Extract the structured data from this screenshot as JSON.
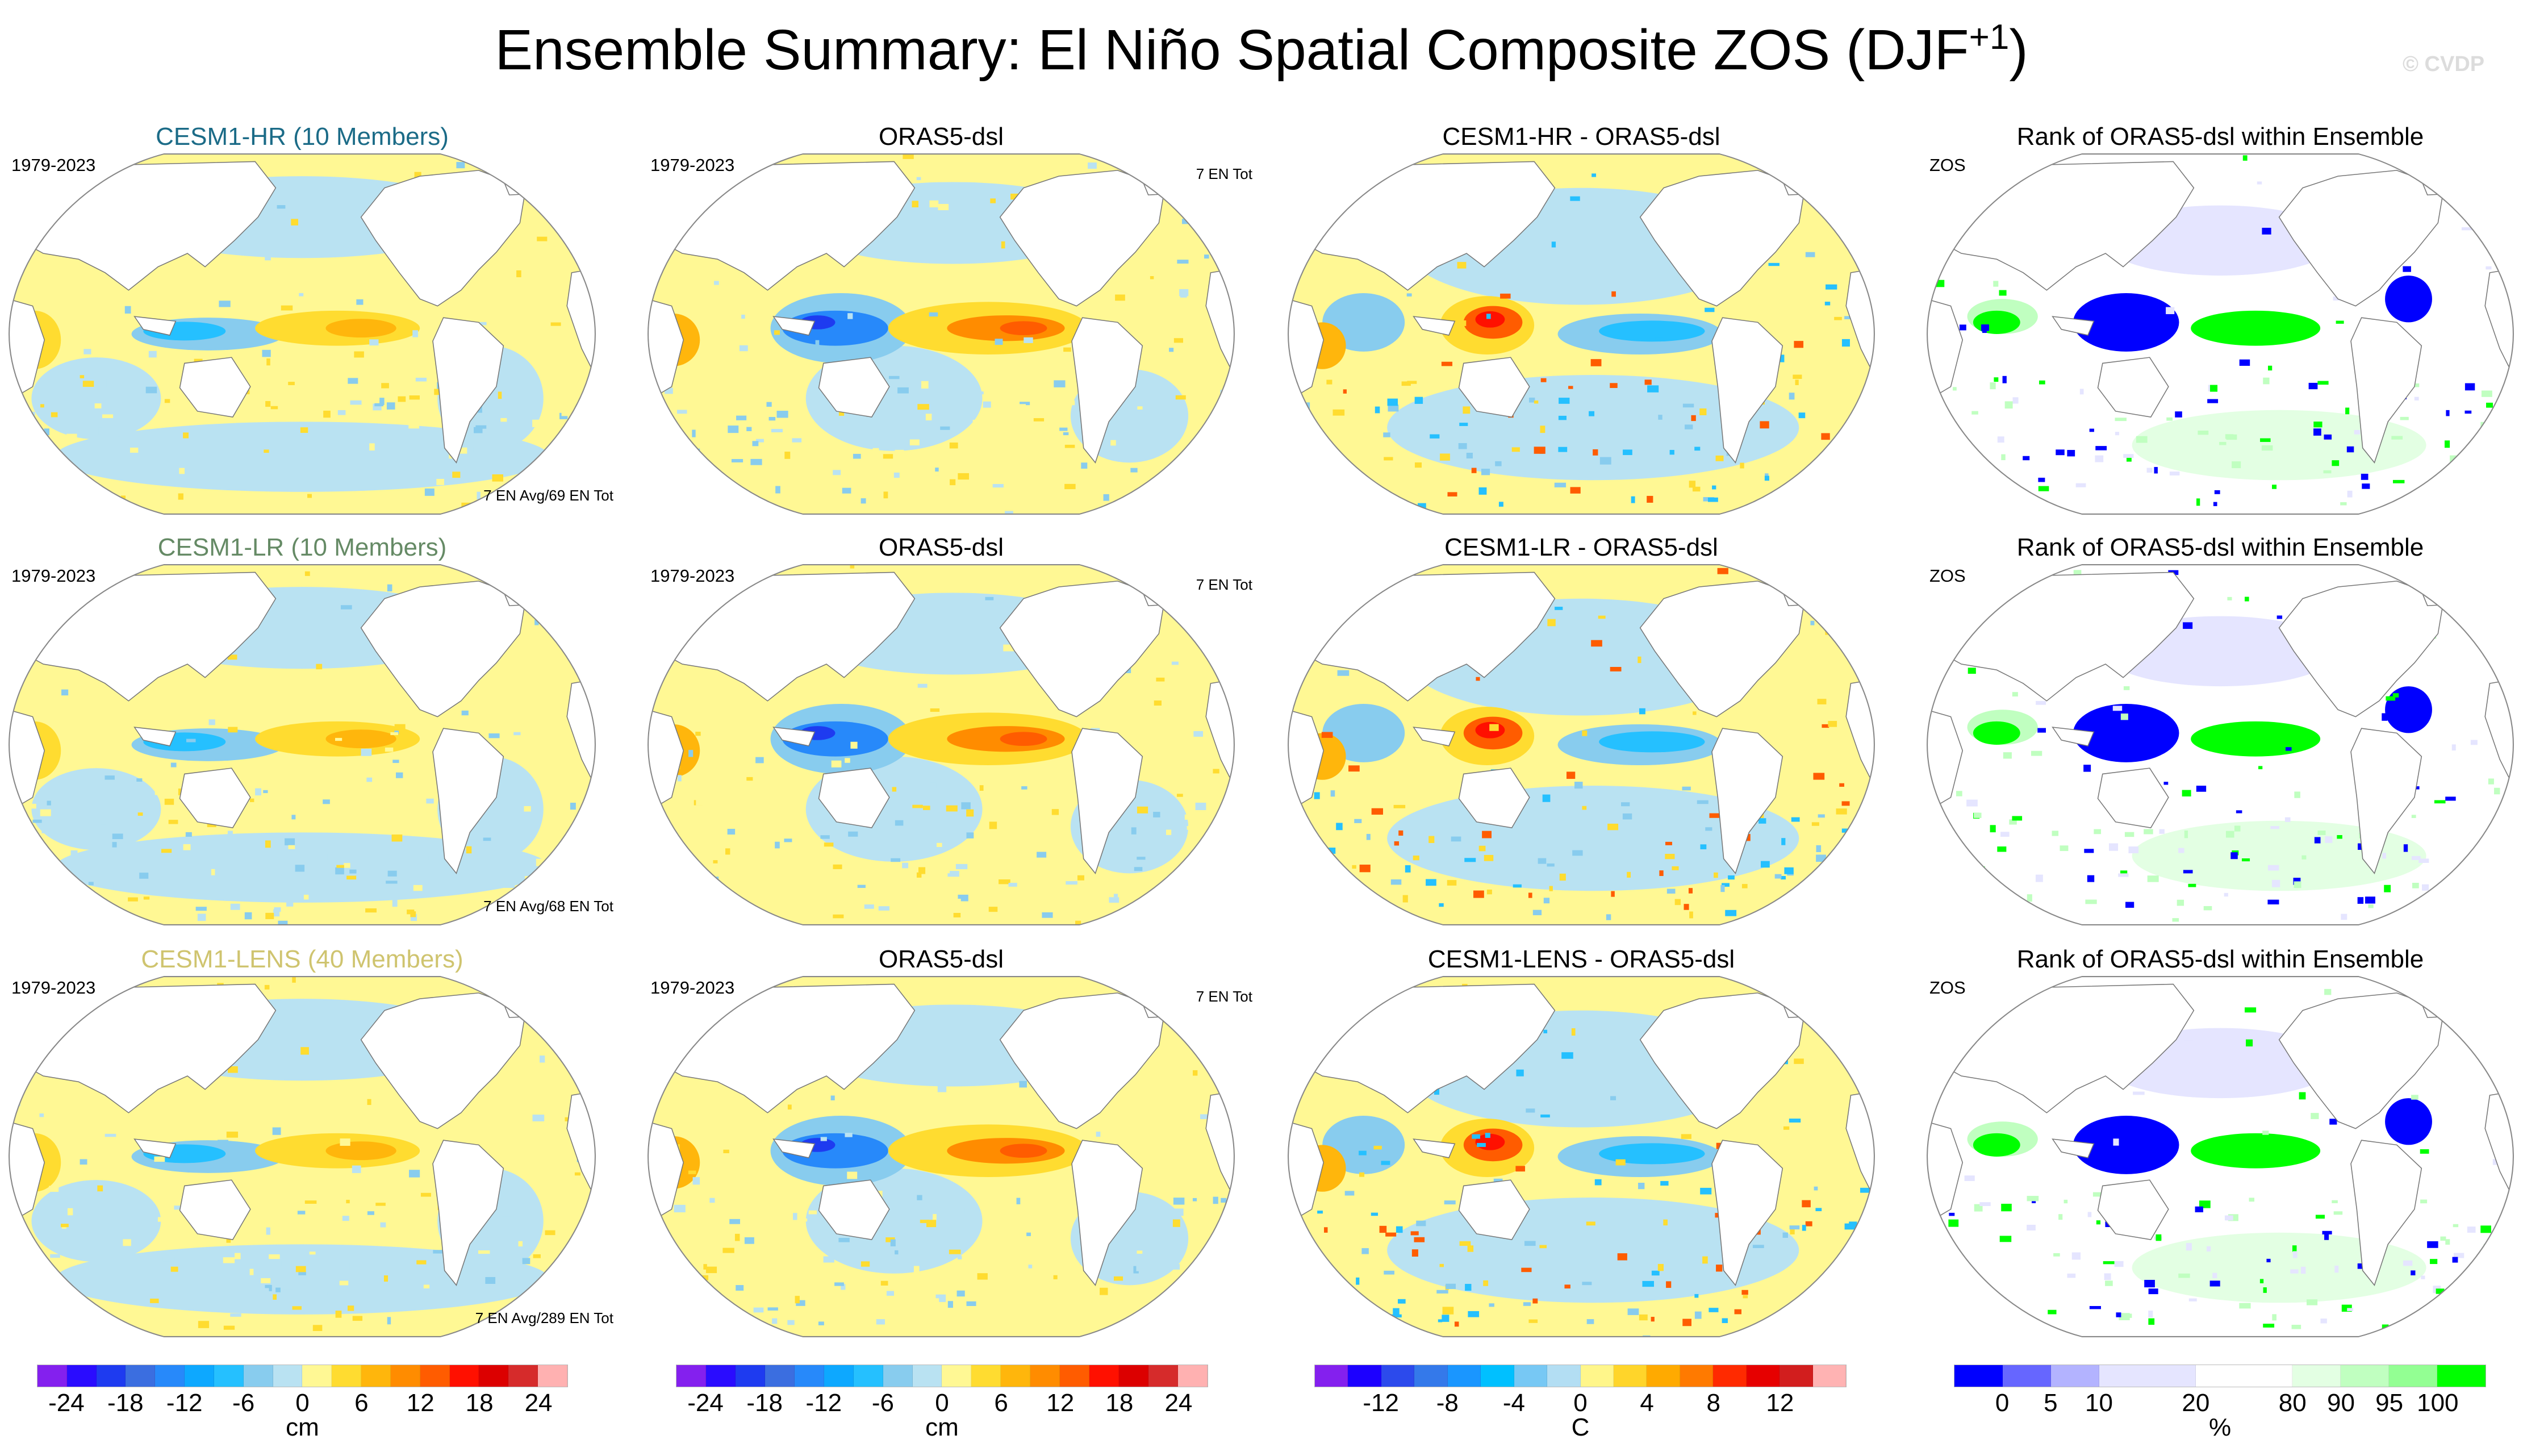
{
  "title": {
    "main": "Ensemble Summary: El Niño Spatial Composite ZOS (DJF",
    "superscript": "+1",
    "close": ")"
  },
  "copyright": "© CVDP",
  "rows": [
    {
      "panels": [
        {
          "title": "CESM1-HR (10 Members)",
          "title_color": "#1b6b87",
          "left_label": "1979-2023",
          "right_label": "7 EN Avg/69 EN Tot",
          "kind": "ensemble-mean"
        },
        {
          "title": "ORAS5-dsl",
          "title_color": "#000000",
          "left_label": "1979-2023",
          "right_label": "7 EN Tot",
          "kind": "observation"
        },
        {
          "title": "CESM1-HR - ORAS5-dsl",
          "title_color": "#000000",
          "left_label": "",
          "right_label": "",
          "kind": "difference"
        },
        {
          "title": "Rank of ORAS5-dsl within Ensemble",
          "title_color": "#000000",
          "left_label": "ZOS",
          "right_label": "",
          "kind": "rank"
        }
      ]
    },
    {
      "panels": [
        {
          "title": "CESM1-LR (10 Members)",
          "title_color": "#658a65",
          "left_label": "1979-2023",
          "right_label": "7 EN Avg/68 EN Tot",
          "kind": "ensemble-mean"
        },
        {
          "title": "ORAS5-dsl",
          "title_color": "#000000",
          "left_label": "1979-2023",
          "right_label": "7 EN Tot",
          "kind": "observation"
        },
        {
          "title": "CESM1-LR - ORAS5-dsl",
          "title_color": "#000000",
          "left_label": "",
          "right_label": "",
          "kind": "difference"
        },
        {
          "title": "Rank of ORAS5-dsl within Ensemble",
          "title_color": "#000000",
          "left_label": "ZOS",
          "right_label": "",
          "kind": "rank"
        }
      ]
    },
    {
      "panels": [
        {
          "title": "CESM1-LENS (40 Members)",
          "title_color": "#cfc46f",
          "left_label": "1979-2023",
          "right_label": "7 EN Avg/289 EN Tot",
          "kind": "ensemble-mean"
        },
        {
          "title": "ORAS5-dsl",
          "title_color": "#000000",
          "left_label": "1979-2023",
          "right_label": "7 EN Tot",
          "kind": "observation"
        },
        {
          "title": "CESM1-LENS - ORAS5-dsl",
          "title_color": "#000000",
          "left_label": "",
          "right_label": "",
          "kind": "difference"
        },
        {
          "title": "Rank of ORAS5-dsl within Ensemble",
          "title_color": "#000000",
          "left_label": "ZOS",
          "right_label": "",
          "kind": "rank"
        }
      ]
    }
  ],
  "colorbars": [
    {
      "units": "cm",
      "levels": [
        -24,
        -21,
        -18,
        -15,
        -12,
        -9,
        -6,
        -3,
        0,
        3,
        6,
        9,
        12,
        15,
        18,
        21,
        24
      ],
      "tick_labels": [
        "-24",
        "-18",
        "-12",
        "-6",
        "0",
        "6",
        "12",
        "18",
        "24"
      ],
      "colors": [
        "#8420ee",
        "#2a0cff",
        "#1e3bf0",
        "#3b6ee0",
        "#2789fa",
        "#0da8ff",
        "#25c0ff",
        "#88ccee",
        "#b9e2f2",
        "#fff894",
        "#ffdc30",
        "#ffb60c",
        "#ff8c00",
        "#ff5c00",
        "#ff1000",
        "#dc0000",
        "#d62b2b",
        "#ffb1b1"
      ]
    },
    {
      "units": "cm",
      "levels": [
        -24,
        -21,
        -18,
        -15,
        -12,
        -9,
        -6,
        -3,
        0,
        3,
        6,
        9,
        12,
        15,
        18,
        21,
        24
      ],
      "tick_labels": [
        "-24",
        "-18",
        "-12",
        "-6",
        "0",
        "6",
        "12",
        "18",
        "24"
      ],
      "colors": [
        "#8420ee",
        "#2a0cff",
        "#1e3bf0",
        "#3b6ee0",
        "#2789fa",
        "#0da8ff",
        "#25c0ff",
        "#88ccee",
        "#b9e2f2",
        "#fff894",
        "#ffdc30",
        "#ffb60c",
        "#ff8c00",
        "#ff5c00",
        "#ff1000",
        "#dc0000",
        "#d62b2b",
        "#ffb1b1"
      ]
    },
    {
      "units": "C",
      "levels": [
        -14,
        -12,
        -10,
        -8,
        -6,
        -4,
        -2,
        0,
        2,
        4,
        6,
        8,
        10,
        12,
        14
      ],
      "tick_labels": [
        "-12",
        "-8",
        "-4",
        "0",
        "4",
        "8",
        "12"
      ],
      "colors": [
        "#8420ee",
        "#1c00ff",
        "#2c4aec",
        "#3479ea",
        "#1a96ff",
        "#00c0ff",
        "#77c8f4",
        "#b3def3",
        "#fff68a",
        "#ffd52a",
        "#ffaa00",
        "#ff7a00",
        "#ff2a00",
        "#e60000",
        "#d21e1e",
        "#ffb3b3"
      ]
    },
    {
      "units": "%",
      "levels": [
        0,
        5,
        10,
        20,
        80,
        90,
        95,
        100
      ],
      "tick_labels": [
        "0",
        "5",
        "10",
        "20",
        "80",
        "90",
        "95",
        "100"
      ],
      "colors": [
        "#0000ff",
        "#6666ff",
        "#b3b3ff",
        "#e5e5ff",
        "#ffffff",
        "#e3ffe3",
        "#c0ffc0",
        "#93ff93",
        "#00ff00"
      ]
    }
  ]
}
